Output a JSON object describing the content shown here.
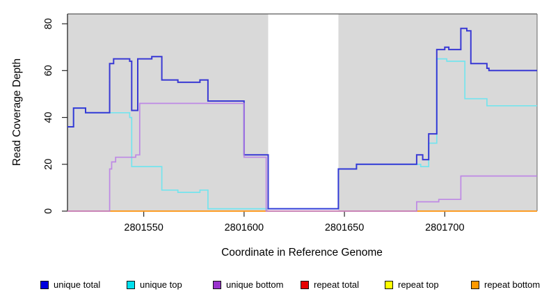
{
  "chart_data": {
    "type": "line",
    "step": true,
    "title": "",
    "xlabel": "Coordinate in Reference Genome",
    "ylabel": "Read Coverage Depth",
    "xlim": [
      2801512,
      2801746
    ],
    "ylim": [
      0,
      84.2
    ],
    "xticks": [
      2801550,
      2801600,
      2801650,
      2801700
    ],
    "yticks": [
      0,
      20,
      40,
      60,
      80
    ],
    "grid": false,
    "background": "#d9d9d9",
    "mask_region": {
      "x_start": 2801612,
      "x_end": 2801647,
      "color": "#ffffff"
    },
    "legend_position": "bottom",
    "series": [
      {
        "name": "unique total",
        "color": "#2b2bd4",
        "legend_color": "#0000e0",
        "width": 2,
        "opacity": 0.92,
        "points": [
          [
            2801512,
            36
          ],
          [
            2801515,
            44
          ],
          [
            2801521,
            42
          ],
          [
            2801533,
            63
          ],
          [
            2801535,
            65
          ],
          [
            2801543,
            64
          ],
          [
            2801544,
            43
          ],
          [
            2801547,
            65
          ],
          [
            2801554,
            66
          ],
          [
            2801559,
            56
          ],
          [
            2801567,
            55
          ],
          [
            2801578,
            56
          ],
          [
            2801582,
            47
          ],
          [
            2801600,
            24
          ],
          [
            2801612,
            1
          ],
          [
            2801647,
            18
          ],
          [
            2801656,
            20
          ],
          [
            2801686,
            24
          ],
          [
            2801689,
            22
          ],
          [
            2801692,
            33
          ],
          [
            2801696,
            69
          ],
          [
            2801700,
            70
          ],
          [
            2801702,
            69
          ],
          [
            2801708,
            78
          ],
          [
            2801711,
            77
          ],
          [
            2801713,
            63
          ],
          [
            2801721,
            61
          ],
          [
            2801722,
            60
          ]
        ]
      },
      {
        "name": "unique top",
        "color": "#74e4ee",
        "legend_color": "#00e0ee",
        "width": 1.7,
        "opacity": 1,
        "points": [
          [
            2801512,
            36
          ],
          [
            2801515,
            44
          ],
          [
            2801521,
            42
          ],
          [
            2801543,
            40
          ],
          [
            2801544,
            19
          ],
          [
            2801559,
            9
          ],
          [
            2801567,
            8
          ],
          [
            2801578,
            9
          ],
          [
            2801582,
            1
          ],
          [
            2801647,
            18
          ],
          [
            2801656,
            20
          ],
          [
            2801688,
            19
          ],
          [
            2801692,
            29
          ],
          [
            2801696,
            65
          ],
          [
            2801701,
            64
          ],
          [
            2801710,
            48
          ],
          [
            2801721,
            45
          ]
        ]
      },
      {
        "name": "unique bottom",
        "color": "#b87ae6",
        "legend_color": "#9932cc",
        "width": 1.7,
        "opacity": 0.85,
        "points": [
          [
            2801512,
            0
          ],
          [
            2801533,
            18
          ],
          [
            2801534,
            21
          ],
          [
            2801536,
            23
          ],
          [
            2801546,
            24
          ],
          [
            2801548,
            46
          ],
          [
            2801600,
            23
          ],
          [
            2801611,
            0
          ],
          [
            2801686,
            4
          ],
          [
            2801697,
            5
          ],
          [
            2801708,
            15
          ]
        ]
      },
      {
        "name": "repeat total",
        "color": "#e0426b",
        "legend_color": "#e60000",
        "width": 1.4,
        "opacity": 1,
        "points": [
          [
            2801512,
            0
          ]
        ]
      },
      {
        "name": "repeat top",
        "color": "#f0e83c",
        "legend_color": "#ffff00",
        "width": 1.3,
        "opacity": 1,
        "points": [
          [
            2801512,
            0
          ]
        ]
      },
      {
        "name": "repeat bottom",
        "color": "#ff9b17",
        "legend_color": "#ff9900",
        "width": 1.8,
        "opacity": 1,
        "points": [
          [
            2801512,
            0
          ]
        ]
      }
    ]
  }
}
